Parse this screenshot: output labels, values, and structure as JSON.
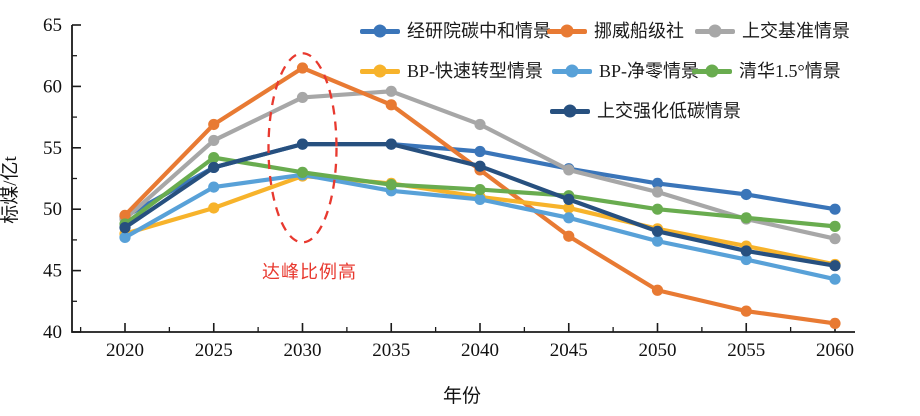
{
  "figure": {
    "type_note": "line chart of coal consumption scenarios"
  },
  "chart_data": {
    "type": "line",
    "x": [
      2020,
      2025,
      2030,
      2035,
      2040,
      2045,
      2050,
      2055,
      2060
    ],
    "xlabel": "年份",
    "ylabel": "标煤/亿t",
    "ylim": [
      40,
      65
    ],
    "ytick_step": 5,
    "yticks": [
      40,
      45,
      50,
      55,
      60,
      65
    ],
    "grid": false,
    "legend_position": "top-right, three rows",
    "series": [
      {
        "name": "经研院碳中和情景",
        "color": "#3a75b9",
        "values": [
          49.4,
          53.4,
          55.3,
          55.3,
          54.7,
          53.3,
          52.1,
          51.2,
          50.0
        ]
      },
      {
        "name": "挪威船级社",
        "color": "#e87a33",
        "values": [
          49.5,
          56.9,
          61.5,
          58.5,
          53.2,
          47.8,
          43.4,
          41.7,
          40.7
        ]
      },
      {
        "name": "上交基准情景",
        "color": "#a7a7a7",
        "values": [
          49.2,
          55.6,
          59.1,
          59.6,
          56.9,
          53.2,
          51.4,
          49.2,
          47.6
        ]
      },
      {
        "name": "BP-快速转型情景",
        "color": "#f7b32b",
        "values": [
          48.0,
          50.1,
          52.7,
          52.1,
          51.0,
          50.1,
          48.4,
          47.0,
          45.5
        ]
      },
      {
        "name": "BP-净零情景",
        "color": "#58a1d8",
        "values": [
          47.7,
          51.8,
          52.8,
          51.5,
          50.8,
          49.3,
          47.4,
          45.9,
          44.3
        ]
      },
      {
        "name": "清华1.5°情景",
        "color": "#69ac4f",
        "values": [
          48.8,
          54.2,
          53.0,
          52.0,
          51.6,
          51.1,
          50.0,
          49.3,
          48.6
        ]
      },
      {
        "name": "上交强化低碳情景",
        "color": "#27507f",
        "values": [
          48.5,
          53.4,
          55.3,
          55.3,
          53.5,
          50.8,
          48.2,
          46.6,
          45.4
        ]
      }
    ],
    "annotation": {
      "text": "达峰比例高",
      "color": "#e8392f",
      "ellipse": {
        "center_year": 2030,
        "value_top": 62.7,
        "value_bottom": 47.3
      }
    }
  }
}
